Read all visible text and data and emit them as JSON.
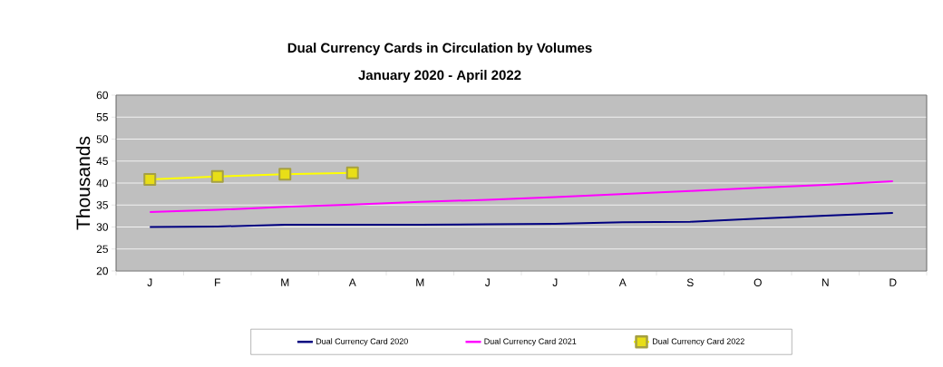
{
  "chart_data": {
    "type": "line",
    "title": "Dual Currency Cards in Circulation by Volumes",
    "subtitle": "January 2020 - April 2022",
    "ylabel": "Thousands",
    "categories": [
      "J",
      "F",
      "M",
      "A",
      "M",
      "J",
      "J",
      "A",
      "S",
      "O",
      "N",
      "D"
    ],
    "series": [
      {
        "name": "Dual Currency Card 2020",
        "color": "#000080",
        "marker": "none",
        "values": [
          30.0,
          30.1,
          30.5,
          30.5,
          30.5,
          30.6,
          30.7,
          31.1,
          31.2,
          31.9,
          32.6,
          33.2
        ]
      },
      {
        "name": "Dual Currency Card 2021",
        "color": "#ff00ff",
        "marker": "none",
        "values": [
          33.4,
          33.9,
          34.6,
          35.1,
          35.7,
          36.2,
          36.8,
          37.5,
          38.2,
          38.9,
          39.6,
          40.4
        ]
      },
      {
        "name": "Dual Currency Card 2022",
        "color": "#ffff00",
        "marker": "square",
        "values": [
          40.8,
          41.5,
          42.0,
          42.3,
          null,
          null,
          null,
          null,
          null,
          null,
          null,
          null
        ]
      }
    ],
    "ylim": [
      20,
      60
    ],
    "yticks": [
      20,
      25,
      30,
      35,
      40,
      45,
      50,
      55,
      60
    ],
    "grid": "y",
    "legend": "bottom",
    "line_style": "solid"
  }
}
